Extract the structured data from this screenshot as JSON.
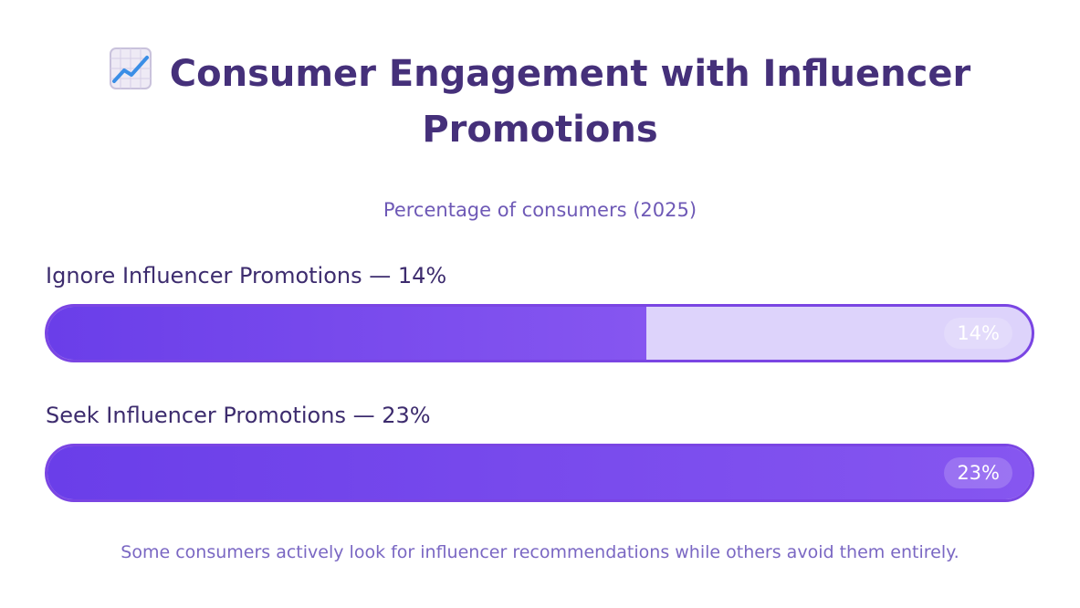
{
  "header": {
    "icon": "chart-increasing-icon",
    "title_line1": "Consumer Engagement with Influencer",
    "title_line2": "Promotions",
    "subtitle": "Percentage of consumers (2025)"
  },
  "chart_data": {
    "type": "bar",
    "orientation": "horizontal",
    "title": "Consumer Engagement with Influencer Promotions",
    "subtitle": "Percentage of consumers (2025)",
    "categories": [
      "Ignore Influencer Promotions",
      "Seek Influencer Promotions"
    ],
    "values": [
      14,
      23
    ],
    "value_unit": "%",
    "fill_fraction_of_track": [
      0.6087,
      1.0
    ],
    "labels": [
      "Ignore Influencer Promotions — 14%",
      "Seek Influencer Promotions — 23%"
    ],
    "data_labels": [
      "14%",
      "23%"
    ],
    "grid": false,
    "colors": {
      "fill_start": "#6a3ee9",
      "fill_end": "#8656f0",
      "track": "#ddd3fb",
      "border": "#7a45e3"
    }
  },
  "footer": {
    "note": "Some consumers actively look for influencer recommendations while others avoid them entirely."
  }
}
